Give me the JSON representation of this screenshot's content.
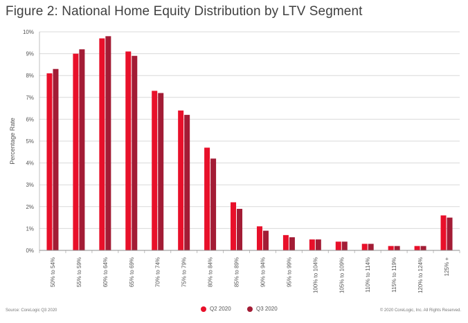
{
  "title": "Figure 2: National Home Equity Distribution by LTV Segment",
  "source": "Source: CoreLogic Q3 2020",
  "copyright": "© 2020 CoreLogic, Inc. All Rights Reserved.",
  "colors": {
    "q2": "#e8102a",
    "q3": "#a31c35",
    "grid": "#d9d9d9",
    "axis": "#555555"
  },
  "chart_data": {
    "type": "bar",
    "title": "Figure 2: National Home Equity Distribution by LTV Segment",
    "ylabel": "Percentage Rate",
    "xlabel": "",
    "ylim": [
      0,
      10
    ],
    "yticks": [
      "0%",
      "1%",
      "2%",
      "3%",
      "4%",
      "5%",
      "6%",
      "7%",
      "8%",
      "9%",
      "10%"
    ],
    "grid": true,
    "legend_position": "bottom-center",
    "categories": [
      "50% to 54%",
      "55% to 59%",
      "60% to 64%",
      "65% to 69%",
      "70% to 74%",
      "75% to 79%",
      "80% to 84%",
      "85% to 89%",
      "90% to 94%",
      "95% to 99%",
      "100% to 104%",
      "105% to 109%",
      "110% to 114%",
      "115% to 119%",
      "120% to 124%",
      "125% +"
    ],
    "series": [
      {
        "name": "Q2 2020",
        "values": [
          8.1,
          9.0,
          9.7,
          9.1,
          7.3,
          6.4,
          4.7,
          2.2,
          1.1,
          0.7,
          0.5,
          0.4,
          0.3,
          0.2,
          0.2,
          1.6
        ]
      },
      {
        "name": "Q3 2020",
        "values": [
          8.3,
          9.2,
          9.8,
          8.9,
          7.2,
          6.2,
          4.2,
          1.9,
          0.9,
          0.6,
          0.5,
          0.4,
          0.3,
          0.2,
          0.2,
          1.5
        ]
      }
    ]
  }
}
